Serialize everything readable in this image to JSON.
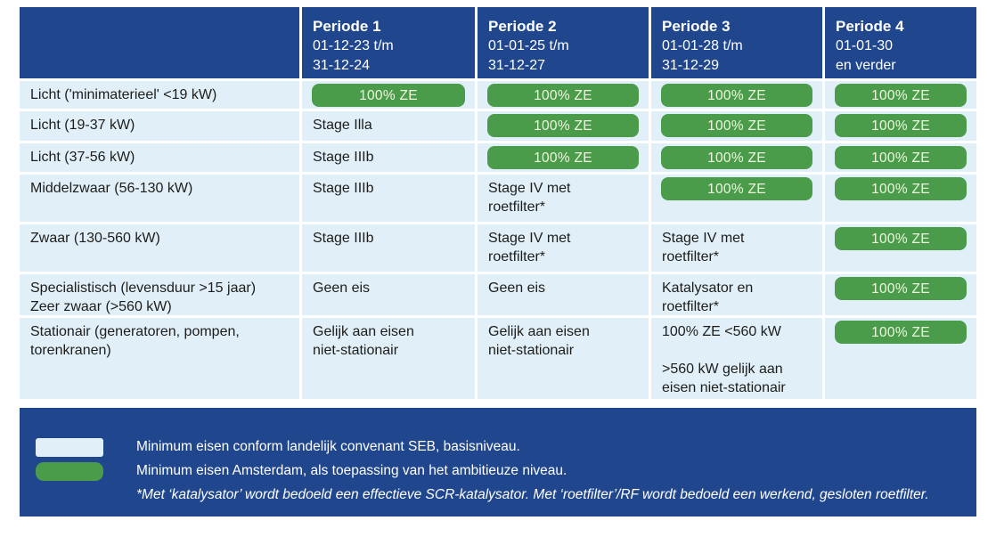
{
  "colors": {
    "header_blue": "#20478E",
    "row_blue": "#E1F0F8",
    "badge_green": "#4A9C4B",
    "badge_text": "#F0F7E0",
    "text_dark": "#1D1D1B",
    "footer_blue": "#20478E"
  },
  "badge_label": "100% ZE",
  "header": {
    "columns": [
      {
        "title": "Periode 1",
        "lines": [
          "01-12-23 t/m",
          "31-12-24"
        ]
      },
      {
        "title": "Periode 2",
        "lines": [
          "01-01-25 t/m",
          "31-12-27"
        ]
      },
      {
        "title": "Periode 3",
        "lines": [
          "01-01-28 t/m",
          "31-12-29"
        ]
      },
      {
        "title": "Periode 4",
        "lines": [
          "01-01-30",
          "en verder"
        ]
      }
    ]
  },
  "rows": [
    {
      "label_lines": [
        "Licht ('minimaterieel' <19 kW)"
      ],
      "cells": [
        {
          "badge": true
        },
        {
          "badge": true
        },
        {
          "badge": true
        },
        {
          "badge": true
        }
      ]
    },
    {
      "label_lines": [
        "Licht (19-37 kW)"
      ],
      "cells": [
        {
          "lines": [
            "Stage Illa"
          ]
        },
        {
          "badge": true
        },
        {
          "badge": true
        },
        {
          "badge": true
        }
      ]
    },
    {
      "label_lines": [
        "Licht (37-56 kW)"
      ],
      "cells": [
        {
          "lines": [
            "Stage IIIb"
          ]
        },
        {
          "badge": true
        },
        {
          "badge": true
        },
        {
          "badge": true
        }
      ]
    },
    {
      "label_lines": [
        "Middelzwaar (56-130 kW)"
      ],
      "cells": [
        {
          "lines": [
            "Stage IIIb"
          ]
        },
        {
          "lines": [
            "Stage IV met",
            "roetfilter*"
          ]
        },
        {
          "badge": true
        },
        {
          "badge": true
        }
      ]
    },
    {
      "label_lines": [
        "Zwaar (130-560 kW)"
      ],
      "cells": [
        {
          "lines": [
            "Stage IIIb"
          ]
        },
        {
          "lines": [
            "Stage IV met",
            "roetfilter*"
          ]
        },
        {
          "lines": [
            "Stage IV met",
            "roetfilter*"
          ]
        },
        {
          "badge": true
        }
      ]
    },
    {
      "label_lines": [
        "Specialistisch (levensduur >15 jaar)",
        "Zeer zwaar (>560 kW)"
      ],
      "cells": [
        {
          "lines": [
            "Geen eis"
          ]
        },
        {
          "lines": [
            "Geen eis"
          ]
        },
        {
          "lines": [
            "Katalysator en",
            "roetfilter*"
          ]
        },
        {
          "badge": true
        }
      ]
    },
    {
      "label_lines": [
        "Stationair (generatoren, pompen,",
        "torenkranen)"
      ],
      "cells": [
        {
          "lines": [
            "Gelijk aan eisen",
            "niet-stationair"
          ]
        },
        {
          "lines": [
            "Gelijk aan eisen",
            "niet-stationair"
          ]
        },
        {
          "lines": [
            "100% ZE <560 kW",
            "",
            ">560 kW gelijk aan",
            "eisen niet-stationair"
          ]
        },
        {
          "badge": true
        }
      ]
    }
  ],
  "legend": {
    "item_basis": "Minimum eisen conform landelijk convenant SEB, basisniveau.",
    "item_ambitie": "Minimum eisen Amsterdam, als toepassing van het ambitieuze niveau.",
    "footnote": "*Met ‘katalysator’ wordt bedoeld een effectieve SCR-katalysator. Met ‘roetfilter’/RF wordt bedoeld een werkend, gesloten roetfilter."
  }
}
